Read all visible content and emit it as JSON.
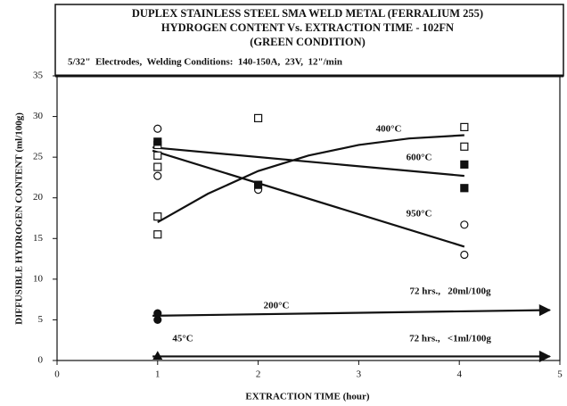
{
  "chart_data": {
    "type": "scatter",
    "title": [
      "DUPLEX STAINLESS STEEL SMA WELD METAL (FERRALIUM 255)",
      "HYDROGEN CONTENT Vs. EXTRACTION TIME - 102FN",
      "(GREEN CONDITION)"
    ],
    "subtitle": "5/32\"  Electrodes,  Welding Conditions:  140-150A,  23V,  12\"/min",
    "x_label": "EXTRACTION TIME (hour)",
    "y_label": "DIFFUSIBLE HYDROGEN CONTENT (ml/100g)",
    "xlim": [
      0,
      5
    ],
    "ylim": [
      0,
      35
    ],
    "xticks": [
      0,
      1,
      2,
      3,
      4,
      5
    ],
    "yticks": [
      0,
      5,
      10,
      15,
      20,
      25,
      30,
      35
    ],
    "series": [
      {
        "marker": "square-open",
        "x": [
          1,
          1,
          1,
          1,
          1,
          2,
          4.05,
          4.05
        ],
        "y": [
          26.5,
          25.2,
          23.8,
          17.7,
          15.5,
          29.8,
          28.7,
          26.3
        ]
      },
      {
        "marker": "circle-open",
        "x": [
          1,
          1,
          2,
          4.05,
          4.05
        ],
        "y": [
          28.5,
          22.7,
          21,
          16.7,
          13
        ]
      },
      {
        "marker": "square-filled",
        "x": [
          1,
          2,
          4.05,
          4.05
        ],
        "y": [
          26.9,
          21.6,
          24.1,
          21.2
        ]
      },
      {
        "marker": "circle-filled",
        "x": [
          1,
          1
        ],
        "y": [
          5.8,
          5.0
        ]
      },
      {
        "marker": "triangle-filled",
        "x": [
          1
        ],
        "y": [
          0.5
        ]
      }
    ],
    "lines": [
      {
        "label": "400°C",
        "x": [
          1,
          1.5,
          2,
          2.5,
          3,
          3.5,
          4.05
        ],
        "y": [
          17,
          20.5,
          23.3,
          25.2,
          26.5,
          27.3,
          27.7
        ]
      },
      {
        "label": "600°C",
        "x": [
          0.95,
          4.05
        ],
        "y": [
          26.2,
          22.7
        ]
      },
      {
        "label": "950°C",
        "x": [
          0.95,
          4.05
        ],
        "y": [
          25.8,
          14
        ]
      },
      {
        "label": "200°C",
        "x": [
          0.95,
          4.9
        ],
        "y": [
          5.5,
          6.2
        ],
        "arrow": true
      },
      {
        "label": "45°C",
        "x": [
          0.95,
          4.9
        ],
        "y": [
          0.5,
          0.5
        ],
        "arrow": true
      }
    ],
    "annotations": [
      "72 hrs.,   20ml/100g",
      "72 hrs.,   <1ml/100g"
    ]
  }
}
